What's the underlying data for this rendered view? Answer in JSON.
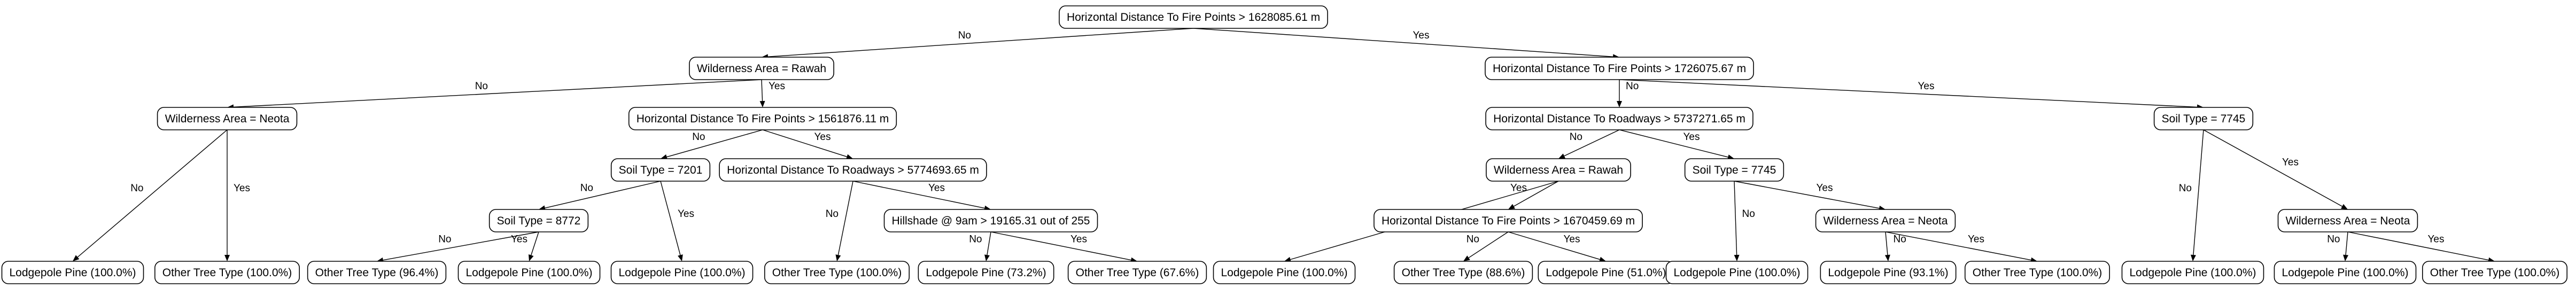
{
  "tree": {
    "nodes": [
      {
        "id": "n0",
        "label": "Horizontal Distance To Fire Points > 1628085.61 m"
      },
      {
        "id": "n1",
        "label": "Wilderness Area = Rawah"
      },
      {
        "id": "n2",
        "label": "Horizontal Distance To Fire Points > 1726075.67 m"
      },
      {
        "id": "n3",
        "label": "Wilderness Area = Neota"
      },
      {
        "id": "n4",
        "label": "Horizontal Distance To Fire Points > 1561876.11 m"
      },
      {
        "id": "n5",
        "label": "Lodgepole Pine (100.0%)"
      },
      {
        "id": "n6",
        "label": "Other Tree Type (100.0%)"
      },
      {
        "id": "n7",
        "label": "Soil Type = 7201"
      },
      {
        "id": "n8",
        "label": "Horizontal Distance To Roadways > 5774693.65 m"
      },
      {
        "id": "n9",
        "label": "Soil Type = 8772"
      },
      {
        "id": "n10",
        "label": "Lodgepole Pine (100.0%)"
      },
      {
        "id": "n11",
        "label": "Other Tree Type (96.4%)"
      },
      {
        "id": "n12",
        "label": "Lodgepole Pine (100.0%)"
      },
      {
        "id": "n13",
        "label": "Other Tree Type (100.0%)"
      },
      {
        "id": "n14",
        "label": "Hillshade @ 9am > 19165.31 out of 255"
      },
      {
        "id": "n15",
        "label": "Lodgepole Pine (73.2%)"
      },
      {
        "id": "n16",
        "label": "Other Tree Type (67.6%)"
      },
      {
        "id": "n17",
        "label": "Horizontal Distance To Roadways > 5737271.65 m"
      },
      {
        "id": "n18",
        "label": "Soil Type = 7745"
      },
      {
        "id": "n19",
        "label": "Wilderness Area = Rawah"
      },
      {
        "id": "n20",
        "label": "Soil Type = 7745"
      },
      {
        "id": "n21",
        "label": "Lodgepole Pine (100.0%)"
      },
      {
        "id": "n22",
        "label": "Horizontal Distance To Fire Points > 1670459.69 m"
      },
      {
        "id": "n23",
        "label": "Other Tree Type (88.6%)"
      },
      {
        "id": "n24",
        "label": "Lodgepole Pine (51.0%)"
      },
      {
        "id": "n25",
        "label": "Lodgepole Pine (100.0%)"
      },
      {
        "id": "n26",
        "label": "Wilderness Area = Neota"
      },
      {
        "id": "n27",
        "label": "Lodgepole Pine (93.1%)"
      },
      {
        "id": "n28",
        "label": "Other Tree Type (100.0%)"
      },
      {
        "id": "n29",
        "label": "Lodgepole Pine (100.0%)"
      },
      {
        "id": "n30",
        "label": "Wilderness Area = Neota"
      },
      {
        "id": "n31",
        "label": "Lodgepole Pine (100.0%)"
      },
      {
        "id": "n32",
        "label": "Other Tree Type (100.0%)"
      }
    ],
    "edges": [
      {
        "from": "n0",
        "to": "n1",
        "label": "No"
      },
      {
        "from": "n0",
        "to": "n2",
        "label": "Yes"
      },
      {
        "from": "n1",
        "to": "n3",
        "label": "No"
      },
      {
        "from": "n1",
        "to": "n4",
        "label": "Yes"
      },
      {
        "from": "n3",
        "to": "n5",
        "label": "No"
      },
      {
        "from": "n3",
        "to": "n6",
        "label": "Yes"
      },
      {
        "from": "n4",
        "to": "n7",
        "label": "No"
      },
      {
        "from": "n4",
        "to": "n8",
        "label": "Yes"
      },
      {
        "from": "n7",
        "to": "n9",
        "label": "No"
      },
      {
        "from": "n7",
        "to": "n10",
        "label": "Yes"
      },
      {
        "from": "n9",
        "to": "n11",
        "label": "No"
      },
      {
        "from": "n9",
        "to": "n12",
        "label": "Yes"
      },
      {
        "from": "n8",
        "to": "n13",
        "label": "No"
      },
      {
        "from": "n8",
        "to": "n14",
        "label": "Yes"
      },
      {
        "from": "n14",
        "to": "n15",
        "label": "No"
      },
      {
        "from": "n14",
        "to": "n16",
        "label": "Yes"
      },
      {
        "from": "n2",
        "to": "n17",
        "label": "No"
      },
      {
        "from": "n2",
        "to": "n18",
        "label": "Yes"
      },
      {
        "from": "n17",
        "to": "n19",
        "label": "No"
      },
      {
        "from": "n17",
        "to": "n20",
        "label": "Yes"
      },
      {
        "from": "n19",
        "to": "n21",
        "label": "No"
      },
      {
        "from": "n19",
        "to": "n22",
        "label": "Yes"
      },
      {
        "from": "n22",
        "to": "n23",
        "label": "No"
      },
      {
        "from": "n22",
        "to": "n24",
        "label": "Yes"
      },
      {
        "from": "n20",
        "to": "n25",
        "label": "No"
      },
      {
        "from": "n20",
        "to": "n26",
        "label": "Yes"
      },
      {
        "from": "n26",
        "to": "n27",
        "label": "No"
      },
      {
        "from": "n26",
        "to": "n28",
        "label": "Yes"
      },
      {
        "from": "n18",
        "to": "n29",
        "label": "No"
      },
      {
        "from": "n18",
        "to": "n30",
        "label": "Yes"
      },
      {
        "from": "n30",
        "to": "n31",
        "label": "No"
      },
      {
        "from": "n30",
        "to": "n32",
        "label": "Yes"
      }
    ]
  }
}
